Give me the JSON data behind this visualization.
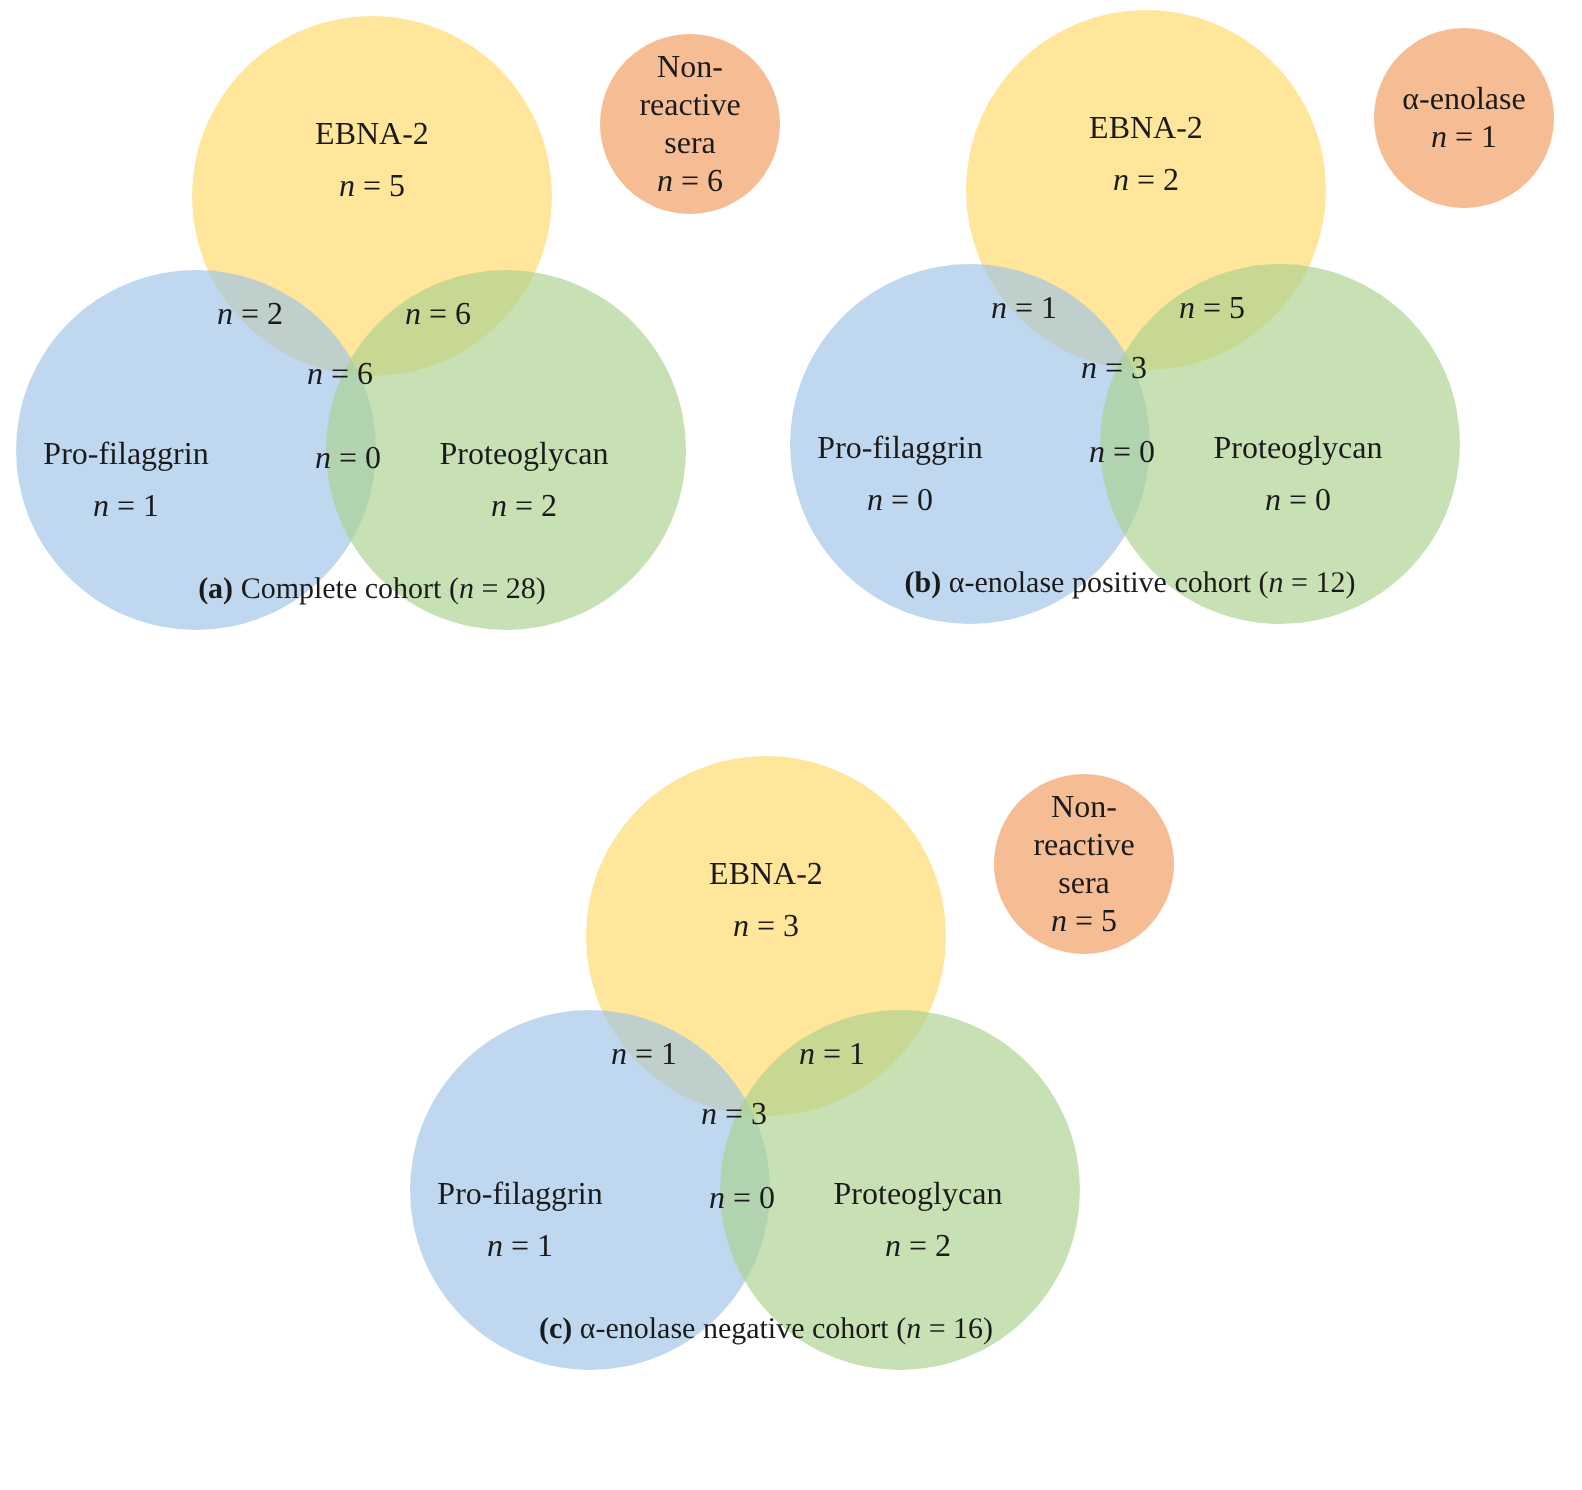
{
  "chart_data": [
    {
      "type": "other",
      "title": "(a) Complete cohort (n = 28)",
      "categories": [
        "EBNA-2",
        "Pro-filaggrin",
        "Proteoglycan",
        "Non-reactive sera"
      ],
      "values": [
        5,
        1,
        2,
        6
      ],
      "value_labels": [
        "n = 5",
        "n = 1",
        "n = 2",
        "n = 6"
      ],
      "colors": [
        "#ffd966",
        "#9dc3e6",
        "#a9d18e",
        "#f4b183"
      ],
      "annotations": [
        "n = 2",
        "n = 6",
        "n = 6",
        "n = 0"
      ]
    },
    {
      "type": "other",
      "title": "(b) α-enolase positive cohort (n = 12)",
      "categories": [
        "EBNA-2",
        "Pro-filaggrin",
        "Proteoglycan",
        "α-enolase"
      ],
      "values": [
        2,
        0,
        0,
        1
      ],
      "value_labels": [
        "n = 2",
        "n = 0",
        "n = 0",
        "n = 1"
      ],
      "colors": [
        "#ffd966",
        "#9dc3e6",
        "#a9d18e",
        "#f4b183"
      ],
      "annotations": [
        "n = 1",
        "n = 5",
        "n = 3",
        "n = 0"
      ]
    },
    {
      "type": "other",
      "title": "(c) α-enolase negative cohort (n = 16)",
      "categories": [
        "EBNA-2",
        "Pro-filaggrin",
        "Proteoglycan",
        "Non-reactive sera"
      ],
      "values": [
        3,
        1,
        2,
        5
      ],
      "value_labels": [
        "n = 3",
        "n = 1",
        "n = 2",
        "n = 5"
      ],
      "colors": [
        "#ffd966",
        "#9dc3e6",
        "#a9d18e",
        "#f4b183"
      ],
      "annotations": [
        "n = 1",
        "n = 1",
        "n = 3",
        "n = 0"
      ]
    }
  ]
}
